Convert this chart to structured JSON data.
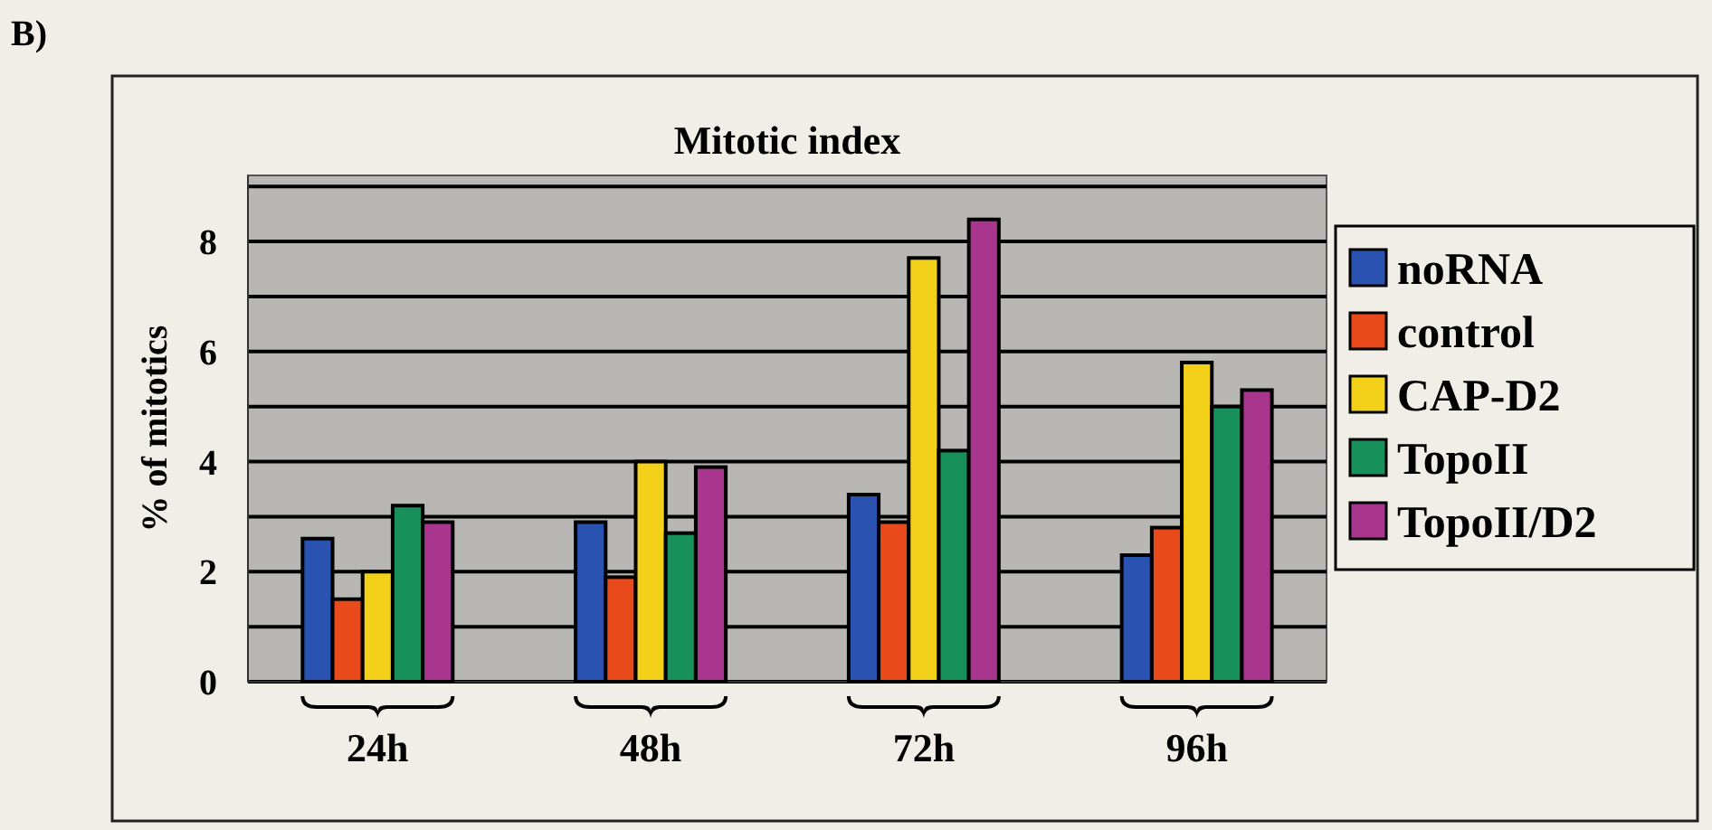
{
  "chart_data": {
    "type": "bar",
    "title": "Mitotic index",
    "ylabel": "% of mitotics",
    "annotations": [
      "B)"
    ],
    "categories": [
      "24h",
      "48h",
      "72h",
      "96h"
    ],
    "series": [
      {
        "name": "noRNA",
        "color": "#2a52b0",
        "values": [
          2.6,
          2.9,
          3.4,
          2.3
        ]
      },
      {
        "name": "control",
        "color": "#e84a1c",
        "values": [
          1.5,
          1.9,
          2.9,
          2.8
        ]
      },
      {
        "name": "CAP-D2",
        "color": "#f3d11a",
        "values": [
          2.0,
          4.0,
          7.7,
          5.8
        ]
      },
      {
        "name": "TopoII",
        "color": "#17905a",
        "values": [
          3.2,
          2.7,
          4.2,
          5.0
        ]
      },
      {
        "name": "TopoII/D2",
        "color": "#a8358e",
        "values": [
          2.9,
          3.9,
          8.4,
          5.3
        ]
      }
    ],
    "ylim": [
      0,
      9.2
    ],
    "yticks": [
      0,
      {
        "value": 1,
        "label": null
      },
      2,
      {
        "value": 3,
        "label": null
      },
      4,
      {
        "value": 5,
        "label": null
      },
      6,
      {
        "value": 7,
        "label": null
      },
      8,
      {
        "value": 9,
        "label": null
      }
    ],
    "grid": "y",
    "legend": "right"
  }
}
